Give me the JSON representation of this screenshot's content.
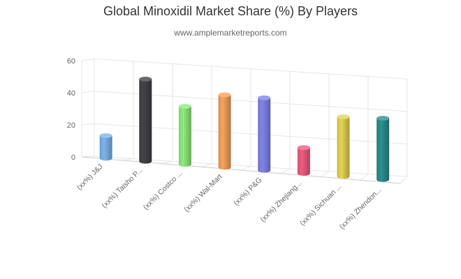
{
  "chart_data": {
    "type": "bar",
    "title": "Global Minoxidil Market Share (%) By Players",
    "subtitle": "www.amplemarketreports.com",
    "categories": [
      "(xx%) J&J",
      "(xx%) Taisho P...",
      "(xx%) Costco ...",
      "(xx%) Wal-Mart",
      "(xx%) P&G",
      "(xx%) Zhejiang...",
      "(xx%) Sichuan ...",
      "(xx%) Zhendon..."
    ],
    "values": [
      14,
      51,
      36,
      45,
      45,
      16,
      37,
      38
    ],
    "colors": [
      "#7cb5ec",
      "#434348",
      "#90ed7d",
      "#f7a35c",
      "#8085e9",
      "#f15c80",
      "#e4d354",
      "#2b908f"
    ],
    "yticks": [
      0,
      20,
      40,
      60
    ],
    "ylim": [
      0,
      60
    ],
    "xlabel": "",
    "ylabel": "",
    "grid": true,
    "legend": false,
    "style": "3d-cylinder"
  }
}
